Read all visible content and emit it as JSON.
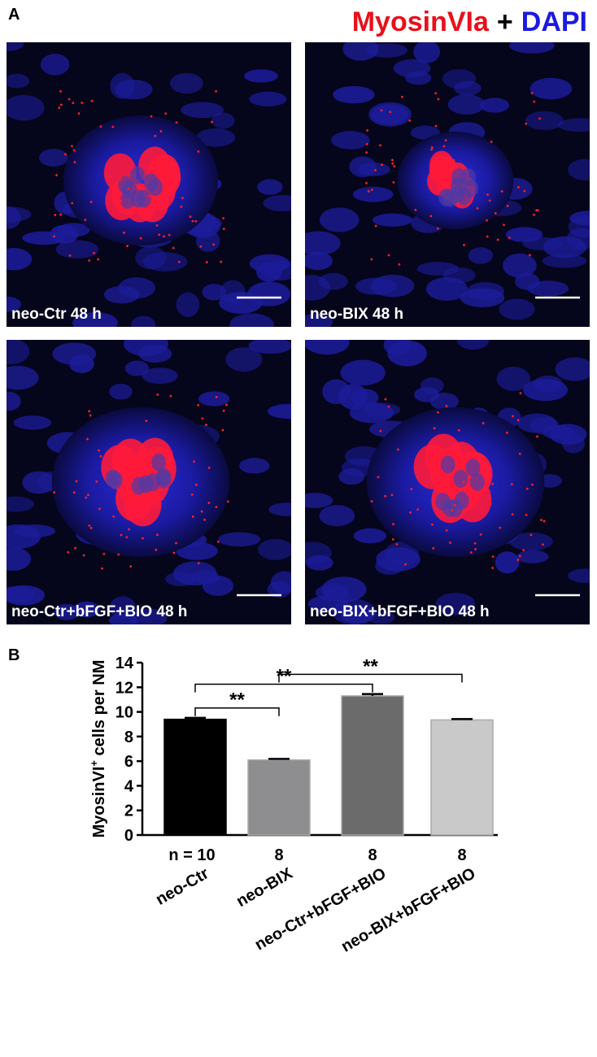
{
  "panel_a": {
    "label": "A",
    "title": {
      "stain1": "MyosinVIa",
      "join": "+",
      "stain2": "DAPI"
    },
    "images": [
      "neo-Ctr 48 h",
      "neo-BIX 48 h",
      "neo-Ctr+bFGF+BIO 48 h",
      "neo-BIX+bFGF+BIO 48 h"
    ]
  },
  "chart_data": {
    "type": "bar",
    "panel_label": "B",
    "ylabel": {
      "main": "MyosinVI",
      "sup": "+",
      "rest": " cells per NM"
    },
    "categories": [
      "neo-Ctr",
      "neo-BIX",
      "neo-Ctr+bFGF+BIO",
      "neo-BIX+bFGF+BIO"
    ],
    "values": [
      9.4,
      6.1,
      11.3,
      9.35
    ],
    "errors": [
      0.12,
      0.08,
      0.15,
      0.07
    ],
    "colors": [
      "#000000",
      "#8e8e90",
      "#6b6b6b",
      "#c9c9c9"
    ],
    "n_labels": [
      "n = 10",
      "8",
      "8",
      "8"
    ],
    "significance": [
      {
        "pair": [
          0,
          1
        ],
        "label": "**"
      },
      {
        "pair": [
          0,
          2
        ],
        "label": "**"
      },
      {
        "pair": [
          1,
          3
        ],
        "label": "**"
      }
    ],
    "ylim": [
      0,
      14
    ],
    "yticks": [
      0,
      2,
      4,
      6,
      8,
      10,
      12,
      14
    ]
  }
}
